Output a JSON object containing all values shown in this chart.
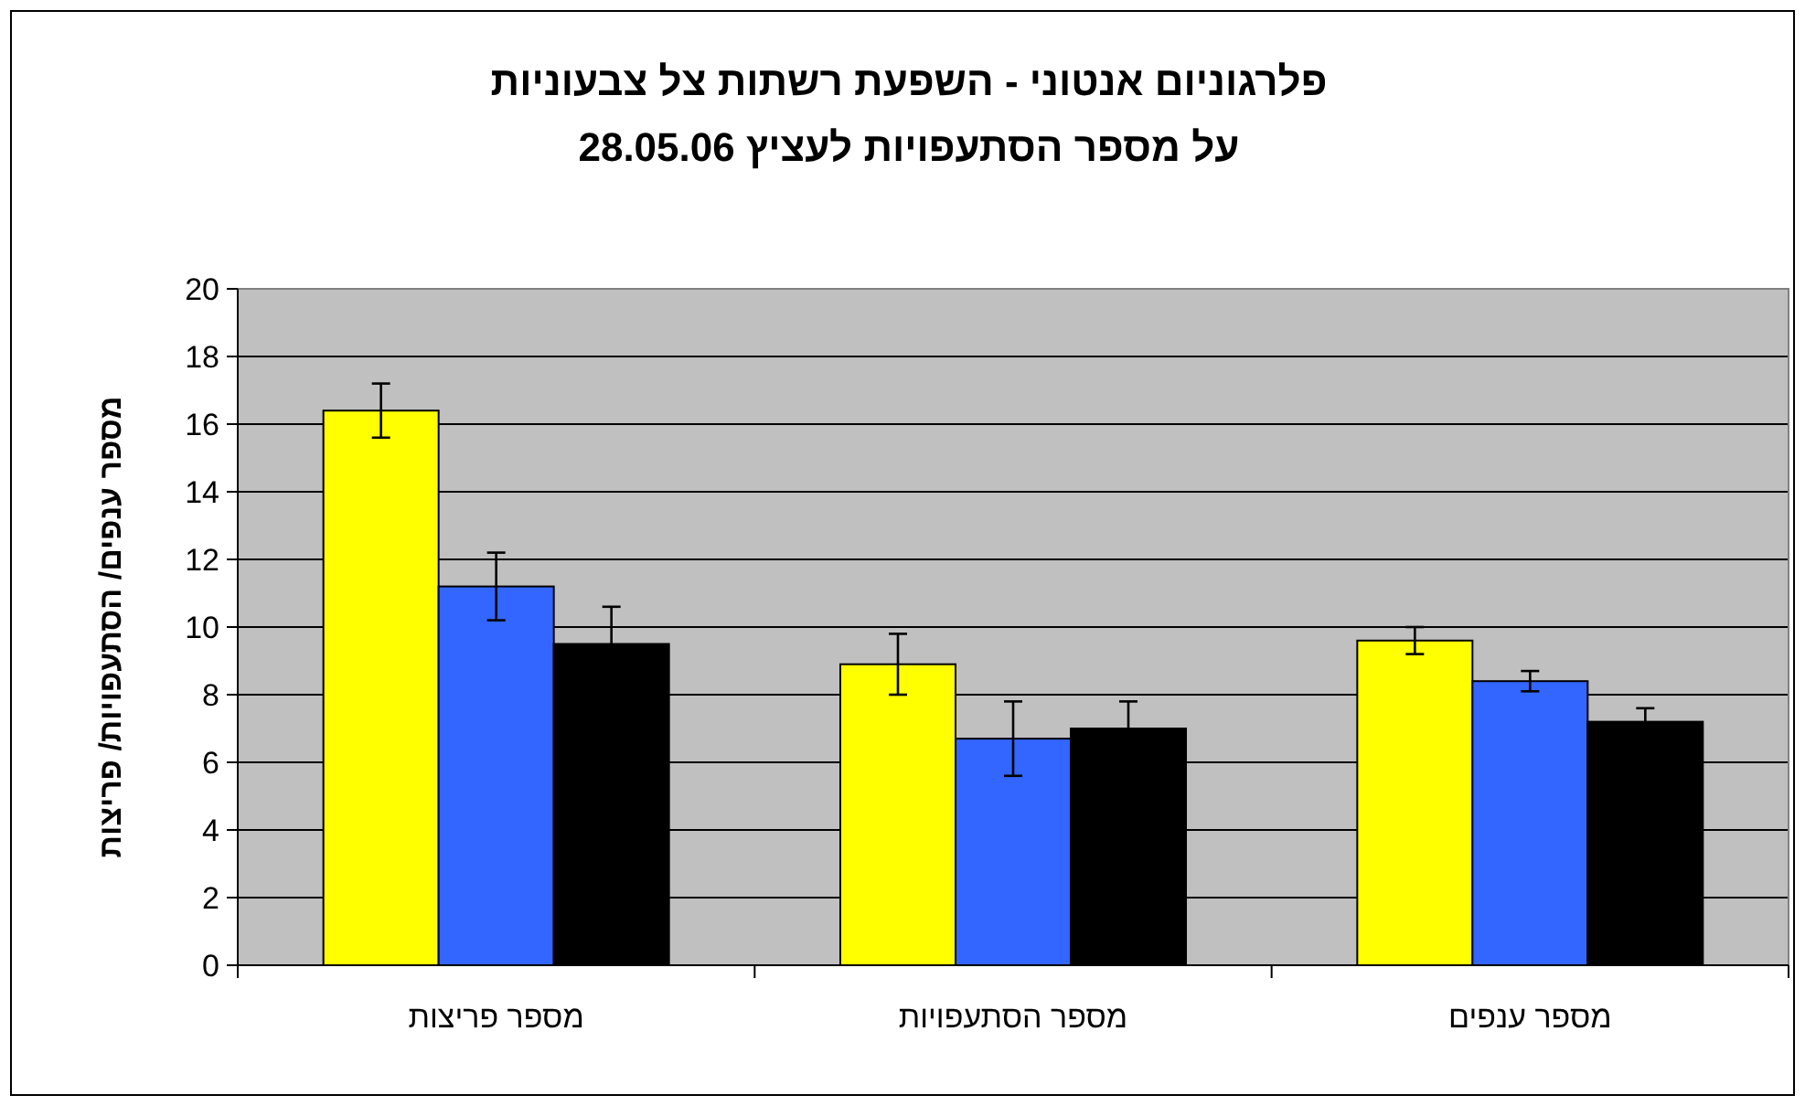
{
  "chart_data": {
    "type": "bar",
    "title": "פלרגוניום אנטוני - השפעת רשתות צל צבעוניות\nעל מספר הסתעפויות לעציץ 28.05.06",
    "ylabel": "מספר ענפים/ הסתעפויות/ פריצות",
    "categories": [
      "מספר פריצות",
      "מספר הסתעפויות",
      "מספר ענפים"
    ],
    "series": [
      {
        "color": "#ffff00",
        "values": [
          16.4,
          8.9,
          9.6
        ],
        "errors": [
          0.8,
          0.9,
          0.4
        ]
      },
      {
        "color": "#3366ff",
        "values": [
          11.2,
          6.7,
          8.4
        ],
        "errors": [
          1.0,
          1.1,
          0.3
        ]
      },
      {
        "color": "#000000",
        "values": [
          9.5,
          7.0,
          7.2
        ],
        "errors": [
          1.1,
          0.8,
          0.4
        ]
      }
    ],
    "ylim": [
      0,
      20
    ],
    "yticks": [
      0,
      2,
      4,
      6,
      8,
      10,
      12,
      14,
      16,
      18,
      20
    ],
    "grid": "y"
  }
}
